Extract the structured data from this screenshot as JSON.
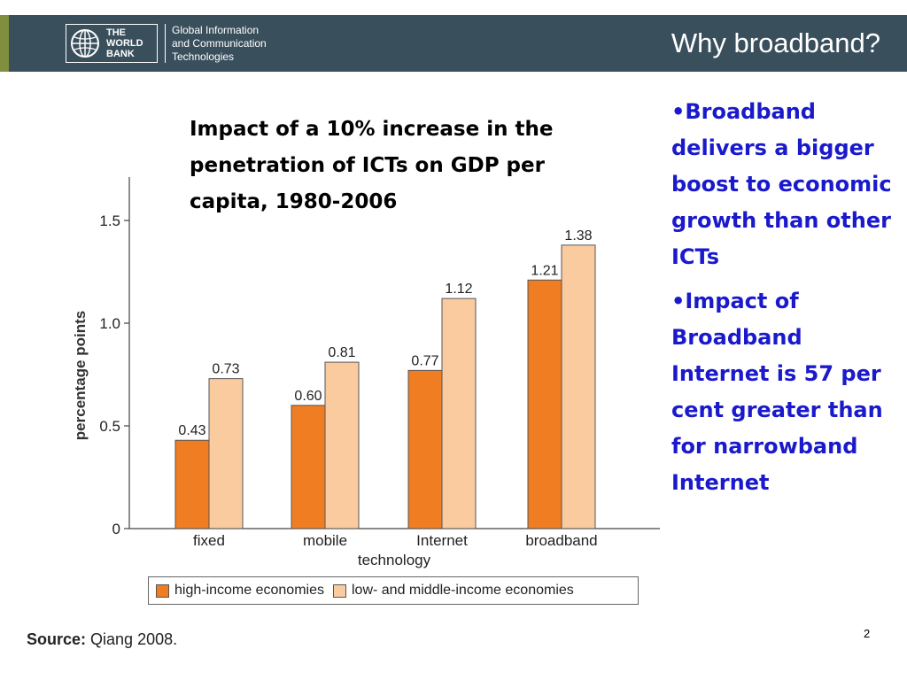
{
  "header": {
    "logo_line1": "THE",
    "logo_line2": "WORLD",
    "logo_line3": "BANK",
    "sub_line1": "Global Information",
    "sub_line2": "and Communication",
    "sub_line3": "Technologies",
    "slide_title": "Why broadband?"
  },
  "chart_title": "Impact of a 10% increase in the penetration of ICTs on GDP per capita, 1980-2006",
  "bullets": [
    "•Broadband delivers a bigger boost to economic growth than other ICTs",
    "•Impact of Broadband Internet is 57 per cent greater than for narrowband Internet"
  ],
  "colors": {
    "header_bg": "#3a4f5c",
    "high_income": "#f07d22",
    "low_middle_income": "#fbcba0",
    "bullet_text": "#1a1acc"
  },
  "chart_data": {
    "type": "bar",
    "categories": [
      "fixed",
      "mobile",
      "Internet",
      "broadband"
    ],
    "series": [
      {
        "name": "high-income economies",
        "values": [
          0.43,
          0.6,
          0.77,
          1.21
        ],
        "labels": [
          "0.43",
          "0.60",
          "0.77",
          "1.21"
        ],
        "color": "#f07d22"
      },
      {
        "name": "low- and middle-income economies",
        "values": [
          0.73,
          0.81,
          1.12,
          1.38
        ],
        "labels": [
          "0.73",
          "0.81",
          "1.12",
          "1.38"
        ],
        "color": "#fbcba0"
      }
    ],
    "xlabel": "technology",
    "ylabel": "percentage points",
    "ylim": [
      0,
      1.7
    ],
    "yticks": [
      0,
      0.5,
      1.0,
      1.5
    ],
    "ytick_labels": [
      "0",
      "0.5",
      "1.0",
      "1.5"
    ],
    "grid": false,
    "legend_position": "bottom"
  },
  "source": {
    "label": "Source:",
    "text": " Qiang 2008."
  },
  "page_number": "2"
}
